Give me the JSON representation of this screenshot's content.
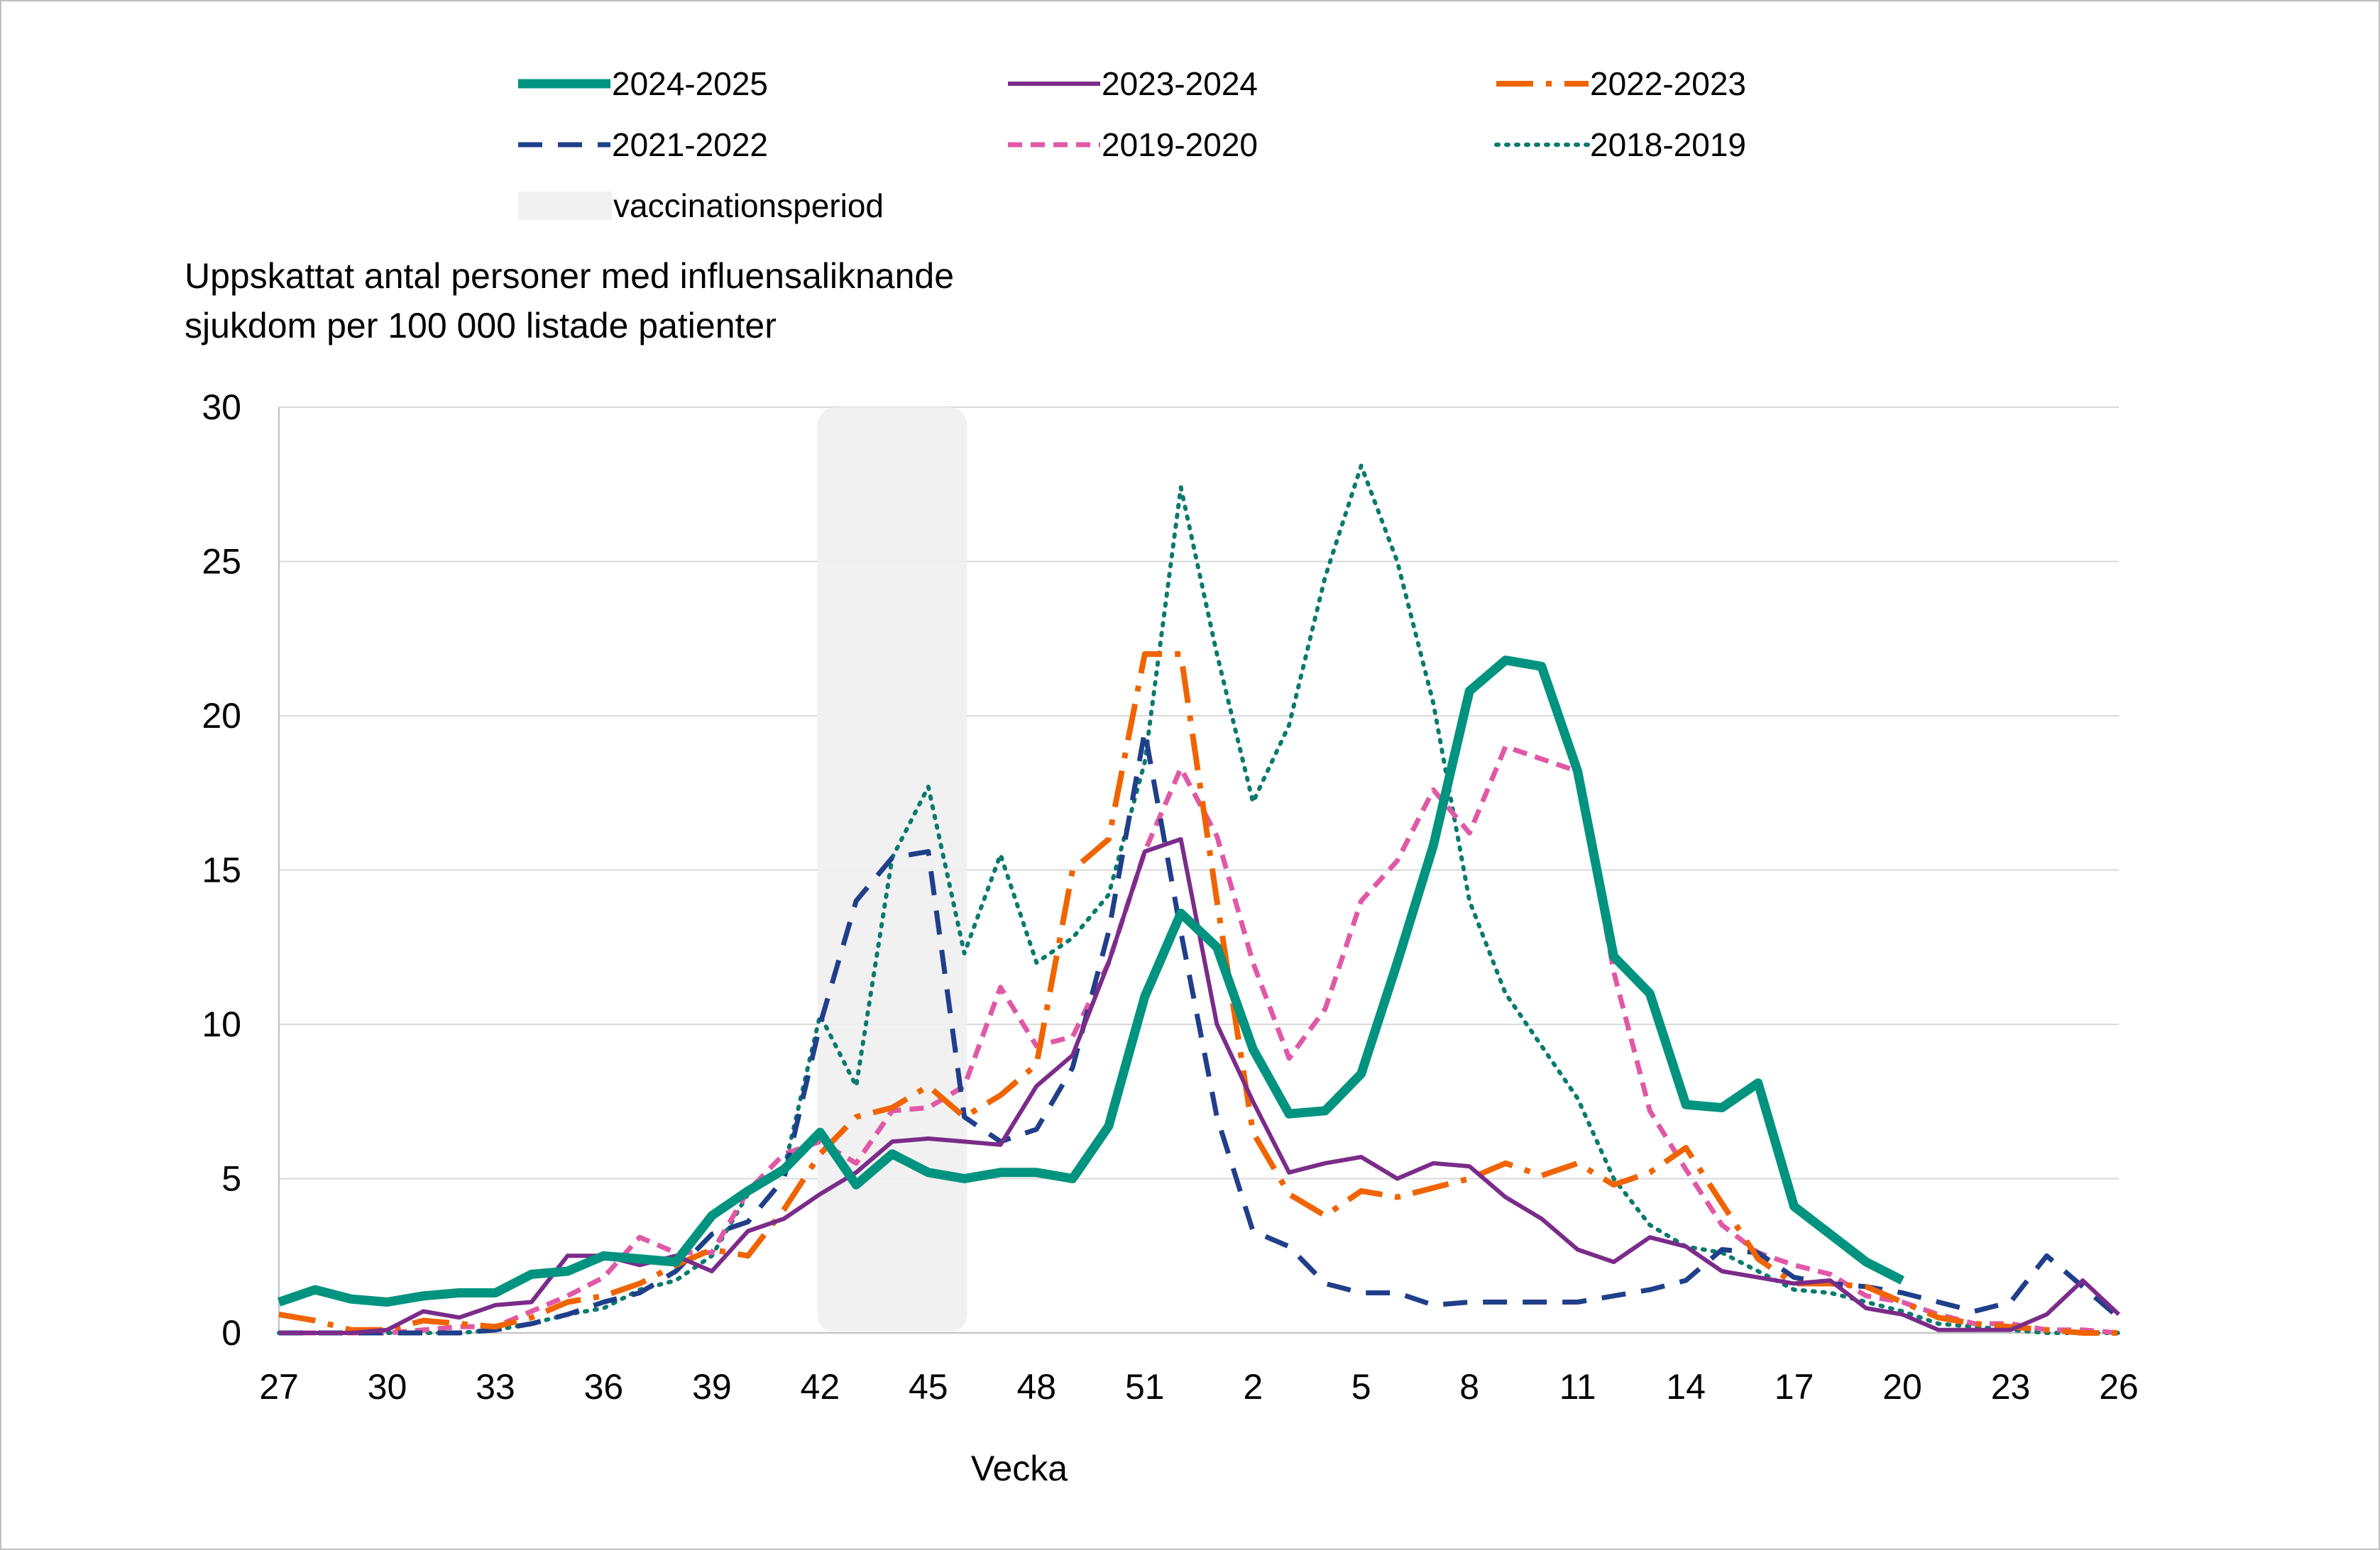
{
  "chart_data": {
    "type": "line",
    "title": "",
    "ylabel": "Uppskattat antal personer med influensaliknande sjukdom per 100 000 listade patienter",
    "ylabel_lines": [
      "Uppskattat antal personer med influensaliknande",
      "sjukdom per 100 000 listade patienter"
    ],
    "xlabel": "Vecka",
    "ylim": [
      0,
      30
    ],
    "yticks": [
      "0",
      "5",
      "10",
      "15",
      "20",
      "25",
      "30"
    ],
    "x_week_labels": [
      "27",
      "30",
      "33",
      "36",
      "39",
      "42",
      "45",
      "48",
      "51",
      "2",
      "5",
      "8",
      "11",
      "14",
      "17",
      "20",
      "23",
      "26"
    ],
    "x_weeks": [
      27,
      28,
      29,
      30,
      31,
      32,
      33,
      34,
      35,
      36,
      37,
      38,
      39,
      40,
      41,
      42,
      43,
      44,
      45,
      46,
      47,
      48,
      49,
      50,
      51,
      52,
      1,
      2,
      3,
      4,
      5,
      6,
      7,
      8,
      9,
      10,
      11,
      12,
      13,
      14,
      15,
      16,
      17,
      18,
      19,
      20,
      21,
      22,
      23,
      24,
      25,
      26
    ],
    "grid": "horizontal",
    "legend_position": "top",
    "vaccination_period": {
      "label": "vaccinationsperiod",
      "from_week": 42,
      "to_week": 46,
      "color": "#f0f0f0"
    },
    "series": [
      {
        "name": "2024-2025",
        "color": "#00937f",
        "style": "solid-thick",
        "values": [
          1.0,
          1.4,
          1.1,
          1.0,
          1.2,
          1.3,
          1.3,
          1.9,
          2.0,
          2.5,
          2.4,
          2.3,
          3.8,
          4.6,
          5.3,
          6.5,
          4.8,
          5.8,
          5.2,
          5.0,
          5.2,
          5.2,
          5.0,
          6.7,
          10.9,
          13.6,
          12.5,
          9.2,
          7.1,
          7.2,
          8.4,
          12.0,
          15.8,
          20.8,
          21.8,
          21.6,
          18.2,
          12.2,
          11.0,
          7.4,
          7.3,
          8.1,
          4.1,
          3.2,
          2.3,
          1.7,
          null,
          null,
          null,
          null,
          null,
          null
        ]
      },
      {
        "name": "2023-2024",
        "color": "#7b2b8a",
        "style": "solid",
        "values": [
          0.0,
          0.0,
          0.0,
          0.1,
          0.7,
          0.5,
          0.9,
          1.0,
          2.5,
          2.5,
          2.2,
          2.5,
          2.0,
          3.3,
          3.7,
          4.5,
          5.2,
          6.2,
          6.3,
          6.2,
          6.1,
          8.0,
          9.0,
          12.0,
          15.6,
          16.0,
          10.0,
          7.5,
          5.2,
          5.5,
          5.7,
          5.0,
          5.5,
          5.4,
          4.4,
          3.7,
          2.7,
          2.3,
          3.1,
          2.8,
          2.0,
          1.8,
          1.6,
          1.7,
          0.8,
          0.6,
          0.1,
          0.1,
          0.1,
          0.6,
          1.7,
          0.6
        ]
      },
      {
        "name": "2022-2023",
        "color": "#f06400",
        "style": "dashdot",
        "values": [
          0.6,
          0.4,
          0.1,
          0.1,
          0.4,
          0.3,
          0.2,
          0.5,
          1.0,
          1.2,
          1.6,
          2.2,
          2.7,
          2.5,
          4.0,
          5.8,
          7.0,
          7.3,
          8.0,
          7.0,
          7.7,
          8.7,
          15.0,
          16.0,
          22.0,
          22.0,
          14.0,
          6.5,
          4.5,
          3.8,
          4.6,
          4.4,
          4.7,
          5.0,
          5.5,
          5.1,
          5.5,
          4.8,
          5.2,
          6.0,
          4.2,
          2.4,
          1.6,
          1.6,
          1.5,
          1.0,
          0.5,
          0.3,
          0.2,
          0.1,
          0.0,
          0.0
        ]
      },
      {
        "name": "2021-2022",
        "color": "#1f3f8a",
        "style": "dash",
        "values": [
          0.0,
          0.0,
          0.0,
          0.0,
          0.0,
          0.0,
          0.1,
          0.3,
          0.6,
          1.0,
          1.3,
          2.0,
          3.2,
          3.6,
          5.0,
          10.0,
          14.0,
          15.4,
          15.6,
          7.0,
          6.2,
          6.6,
          8.6,
          13.0,
          19.5,
          13.0,
          7.0,
          3.3,
          2.8,
          1.6,
          1.3,
          1.3,
          0.9,
          1.0,
          1.0,
          1.0,
          1.0,
          1.2,
          1.4,
          1.7,
          2.7,
          2.6,
          1.8,
          1.6,
          1.5,
          1.3,
          1.0,
          0.7,
          1.0,
          2.5,
          1.5,
          0.5
        ]
      },
      {
        "name": "2019-2020",
        "color": "#e058a6",
        "style": "shortdash",
        "values": [
          0.0,
          0.0,
          0.0,
          0.0,
          0.1,
          0.2,
          0.2,
          0.7,
          1.2,
          1.8,
          3.1,
          2.6,
          2.6,
          4.6,
          5.8,
          6.2,
          5.5,
          7.2,
          7.3,
          8.0,
          11.2,
          9.3,
          9.6,
          12.0,
          15.6,
          18.3,
          16.1,
          12.0,
          8.9,
          10.5,
          14.0,
          15.3,
          17.6,
          16.2,
          19.0,
          18.6,
          18.2,
          11.7,
          7.2,
          5.3,
          3.5,
          2.6,
          2.2,
          1.9,
          1.2,
          1.0,
          0.6,
          0.3,
          0.3,
          0.1,
          0.1,
          0.0
        ]
      },
      {
        "name": "2018-2019",
        "color": "#0a7a6e",
        "style": "dot",
        "values": [
          0.0,
          0.0,
          0.0,
          0.0,
          0.0,
          0.0,
          0.1,
          0.3,
          0.6,
          0.8,
          1.4,
          1.7,
          2.5,
          4.5,
          5.3,
          10.3,
          8.0,
          15.4,
          17.7,
          12.3,
          15.5,
          12.0,
          12.8,
          14.2,
          18.5,
          27.4,
          22.0,
          17.2,
          19.7,
          24.5,
          28.1,
          25.0,
          20.4,
          14.0,
          11.0,
          9.3,
          7.6,
          5.0,
          3.5,
          2.8,
          2.6,
          2.0,
          1.4,
          1.3,
          1.0,
          0.7,
          0.3,
          0.2,
          0.1,
          0.0,
          0.0,
          0.0
        ]
      }
    ]
  }
}
